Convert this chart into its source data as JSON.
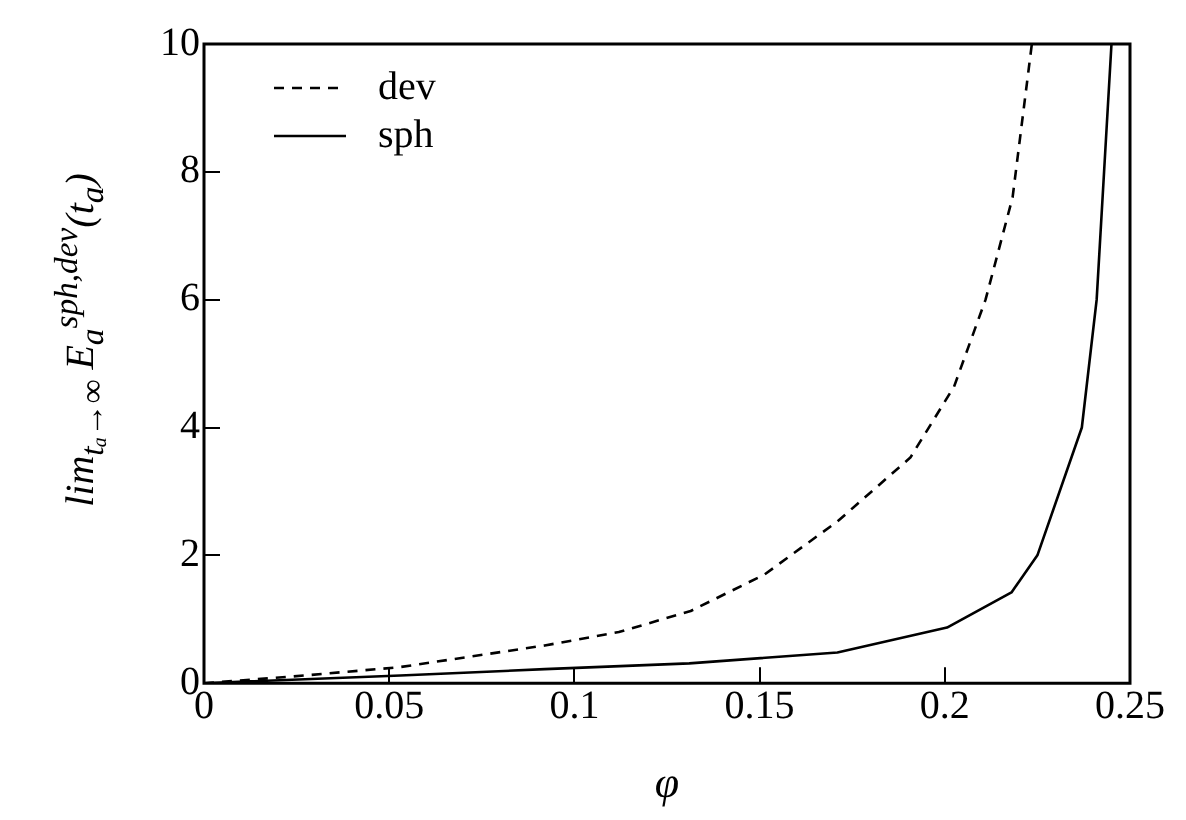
{
  "chart_data": {
    "type": "line",
    "xlabel": "φ",
    "ylabel": "lim$_{tₐ→∞}$ E$_{a}$$^{sph,dev}$(t$_{a}$)",
    "xlim": [
      0,
      0.25
    ],
    "xticks": [
      0,
      0.05,
      0.1,
      0.15,
      0.2,
      0.25
    ],
    "ylim": [
      0,
      10
    ],
    "yticks": [
      0,
      2,
      4,
      6,
      8,
      10
    ],
    "grid": false,
    "legend": "top left",
    "marker": "none",
    "series": [
      {
        "name": "dev",
        "color": "#000000",
        "line_style": "dashed",
        "x": [
          0,
          0.023,
          0.0527,
          0.092,
          0.112,
          0.1314,
          0.1513,
          0.171,
          0.1907,
          0.2025,
          0.211,
          0.2183,
          0.2235
        ],
        "values": [
          0,
          0.1,
          0.25,
          0.59,
          0.8,
          1.13,
          1.7,
          2.53,
          3.53,
          4.64,
          6,
          7.6,
          10
        ]
      },
      {
        "name": "sph",
        "color": "#000000",
        "line_style": "solid",
        "x": [
          0,
          0.053,
          0.092,
          0.131,
          0.171,
          0.2006,
          0.218,
          0.225,
          0.237,
          0.241,
          0.243,
          0.245
        ],
        "values": [
          0,
          0.12,
          0.22,
          0.31,
          0.48,
          0.87,
          1.42,
          2,
          4,
          6,
          8,
          10
        ]
      }
    ]
  }
}
